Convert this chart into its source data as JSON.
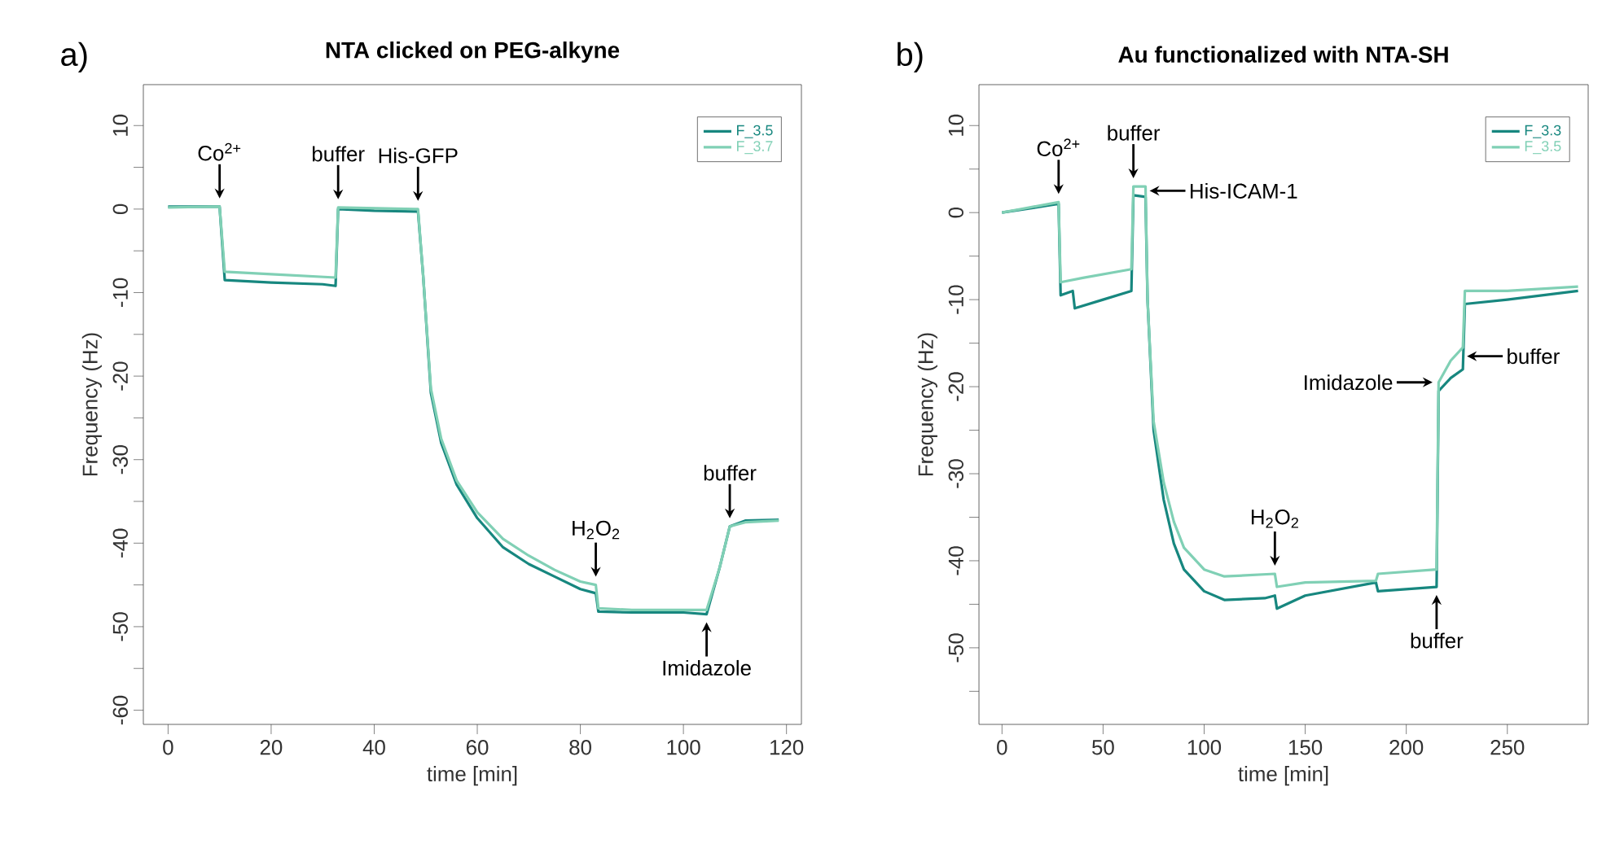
{
  "chart_data": [
    {
      "type": "line",
      "title": "NTA clicked on PEG-alkyne",
      "xlabel": "time [min]",
      "ylabel": "Frequency (Hz)",
      "legend": "top right",
      "grid": false,
      "xlim": [
        -4.8,
        122.9
      ],
      "ylim": [
        -61.7,
        14.9
      ],
      "xticks": [
        0,
        20,
        40,
        60,
        80,
        100,
        120
      ],
      "yticks": [
        -60,
        {
          "value": -55,
          "label": null
        },
        -50,
        {
          "value": -45,
          "label": null
        },
        -40,
        {
          "value": -35,
          "label": null
        },
        -30,
        {
          "value": -25,
          "label": null
        },
        -20,
        {
          "value": -15,
          "label": null
        },
        -10,
        {
          "value": -5,
          "label": null
        },
        0,
        {
          "value": 5,
          "label": null
        },
        10
      ],
      "series": [
        {
          "name": "F_3.5",
          "color": "#17877f",
          "x": [
            0,
            10,
            11,
            20,
            30,
            32.5,
            33,
            40,
            48.5,
            49.5,
            51,
            53,
            56,
            60,
            65,
            70,
            75,
            80,
            83,
            83.5,
            90,
            100,
            104.5,
            107,
            109,
            112,
            118.5
          ],
          "values": [
            0.3,
            0.3,
            -8.5,
            -8.8,
            -9,
            -9.2,
            0,
            -0.2,
            -0.3,
            -8,
            -22,
            -28,
            -33,
            -37,
            -40.5,
            -42.5,
            -44,
            -45.5,
            -46,
            -48.2,
            -48.3,
            -48.3,
            -48.5,
            -43,
            -38,
            -37.3,
            -37.2
          ]
        },
        {
          "name": "F_3.7",
          "color": "#80d0b5",
          "x": [
            0,
            10,
            11,
            20,
            32.5,
            33,
            48.5,
            49.5,
            51,
            53,
            56,
            60,
            65,
            70,
            75,
            80,
            83,
            83.5,
            90,
            104.5,
            107,
            109,
            112,
            118.5
          ],
          "values": [
            0.2,
            0.3,
            -7.5,
            -7.8,
            -8.2,
            0.2,
            0,
            -8,
            -21.5,
            -27.5,
            -32.5,
            -36.3,
            -39.5,
            -41.5,
            -43.2,
            -44.6,
            -45,
            -47.8,
            -48,
            -48,
            -43,
            -38,
            -37.5,
            -37.3
          ]
        }
      ],
      "annotations": [
        "a)",
        {
          "text": "Co$^{2+}$",
          "x": 10,
          "y": 0.3
        },
        {
          "text": "buffer",
          "x": 33,
          "y": 0.2
        },
        {
          "text": "His-GFP",
          "x": 48.5,
          "y": 0
        },
        {
          "text": "H$_{2}$O$_{2}$",
          "x": 83,
          "y": -45
        },
        {
          "text": "buffer",
          "x": 109,
          "y": -38
        },
        {
          "text": "Imidazole",
          "x": 104.5,
          "y": -48.5
        }
      ]
    },
    {
      "type": "line",
      "title": "Au functionalized with NTA-SH",
      "xlabel": "time [min]",
      "ylabel": "Frequency (Hz)",
      "legend": "top right",
      "grid": false,
      "xlim": [
        -11.4,
        290
      ],
      "ylim": [
        -58.8,
        14.7
      ],
      "xticks": [
        0,
        50,
        100,
        150,
        200,
        250
      ],
      "yticks": [
        {
          "value": -55,
          "label": null
        },
        -50,
        {
          "value": -45,
          "label": null
        },
        -40,
        {
          "value": -35,
          "label": null
        },
        -30,
        {
          "value": -25,
          "label": null
        },
        -20,
        {
          "value": -15,
          "label": null
        },
        -10,
        {
          "value": -5,
          "label": null
        },
        0,
        {
          "value": 5,
          "label": null
        },
        10
      ],
      "series": [
        {
          "name": "F_3.3",
          "color": "#17877f",
          "x": [
            0,
            28,
            29,
            35,
            36,
            50,
            64,
            65,
            71,
            72,
            75,
            80,
            85,
            90,
            100,
            110,
            130,
            135,
            136,
            150,
            185,
            186,
            215,
            216,
            222,
            228,
            229,
            250,
            285
          ],
          "values": [
            0,
            1,
            -9.5,
            -9,
            -11,
            -10,
            -9,
            2,
            1.8,
            -10,
            -25,
            -33,
            -38,
            -41,
            -43.5,
            -44.5,
            -44.3,
            -44,
            -45.5,
            -44,
            -42.5,
            -43.5,
            -43,
            -20.5,
            -19,
            -18,
            -10.5,
            -10,
            -9
          ]
        },
        {
          "name": "F_3.5",
          "color": "#80d0b5",
          "x": [
            0,
            28,
            29,
            40,
            64,
            65,
            71,
            72,
            75,
            80,
            85,
            90,
            100,
            110,
            135,
            136,
            150,
            185,
            186,
            215,
            216,
            222,
            228,
            229,
            250,
            285
          ],
          "values": [
            0,
            1.2,
            -8,
            -7.5,
            -6.5,
            3,
            3,
            -10,
            -24,
            -31,
            -35.5,
            -38.5,
            -41,
            -41.8,
            -41.5,
            -43,
            -42.5,
            -42.3,
            -41.5,
            -41,
            -19.5,
            -17,
            -15.5,
            -9,
            -9,
            -8.5
          ]
        }
      ],
      "annotations": [
        "b)",
        {
          "text": "Co$^{2+}$",
          "x": 28,
          "y": 1.2
        },
        {
          "text": "buffer",
          "x": 65,
          "y": 3
        },
        {
          "text": "His-ICAM-1",
          "x": 73,
          "y": 2.5
        },
        {
          "text": "H$_{2}$O$_{2}$",
          "x": 135,
          "y": -41.5
        },
        {
          "text": "Imidazole",
          "x": 213,
          "y": -19.5
        },
        {
          "text": "buffer",
          "x": 230,
          "y": -16.5
        },
        {
          "text": "buffer",
          "x": 215,
          "y": -43
        }
      ]
    }
  ]
}
